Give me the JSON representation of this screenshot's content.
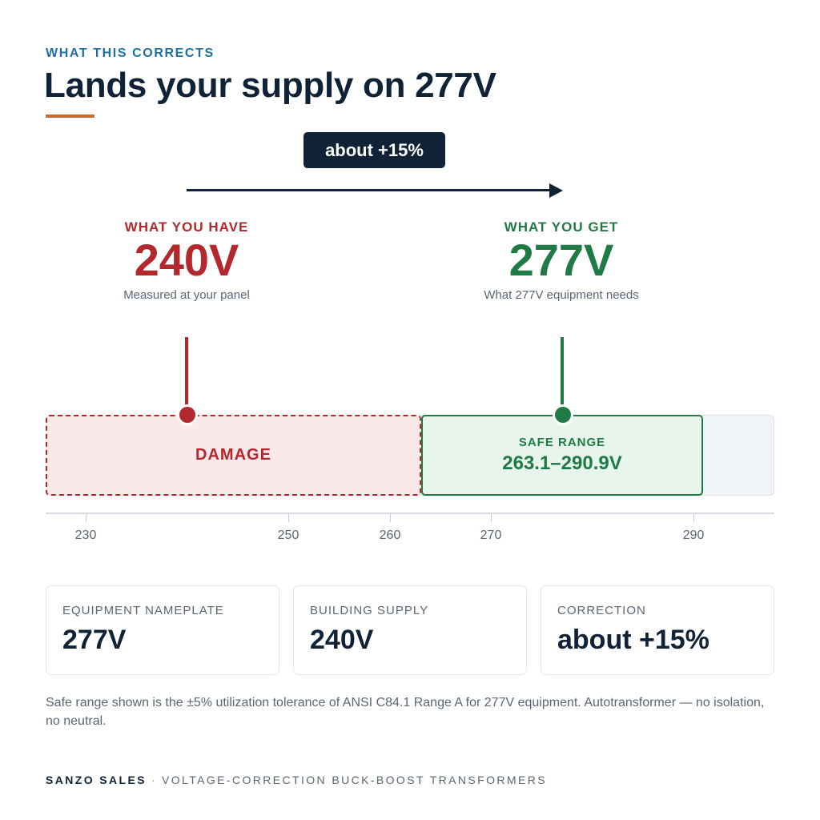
{
  "header": {
    "eyebrow": "WHAT THIS CORRECTS",
    "title": "Lands your supply on 277V"
  },
  "change_badge": "about +15%",
  "have": {
    "label": "WHAT YOU HAVE",
    "value": "240V",
    "caption": "Measured at your panel"
  },
  "get": {
    "label": "WHAT YOU GET",
    "value": "277V",
    "caption": "What 277V equipment needs"
  },
  "scale": {
    "damage_label": "DAMAGE",
    "safe_label": "SAFE RANGE",
    "safe_value": "263.1–290.9V",
    "ticks": [
      "230",
      "250",
      "260",
      "270",
      "290"
    ]
  },
  "cards": [
    {
      "label": "EQUIPMENT NAMEPLATE",
      "value": "277V"
    },
    {
      "label": "BUILDING SUPPLY",
      "value": "240V"
    },
    {
      "label": "CORRECTION",
      "value": "about +15%"
    }
  ],
  "footnote": "Safe range shown is the ±5% utilization tolerance of ANSI C84.1 Range A for 277V equipment. Autotransformer — no isolation, no neutral.",
  "footer": {
    "brand": "SANZO SALES",
    "separator": "·",
    "tagline": "VOLTAGE-CORRECTION BUCK-BOOST TRANSFORMERS"
  },
  "colors": {
    "navy": "#0f2236",
    "accent_blue": "#1f6fa0",
    "damage_red": "#b3282d",
    "safe_green": "#1f7a45",
    "title_rule": "#c76a33"
  }
}
